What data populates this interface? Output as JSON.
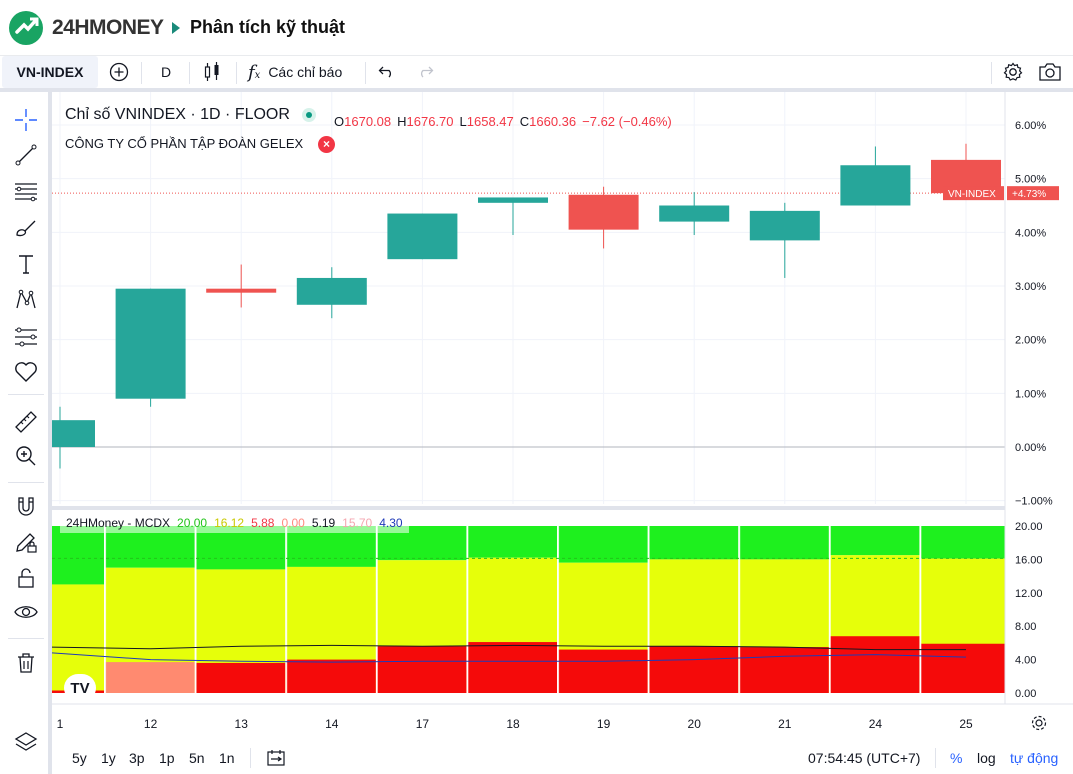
{
  "header": {
    "logo_text": "24HMONEY",
    "page_title": "Phân tích kỹ thuật"
  },
  "toolbar": {
    "symbol": "VN-INDEX",
    "interval": "D",
    "indicators_label": "Các chỉ báo"
  },
  "legend": {
    "title": "Chỉ số VNINDEX · 1D · FLOOR",
    "o_label": "O",
    "o_value": "1670.08",
    "h_label": "H",
    "h_value": "1676.70",
    "l_label": "L",
    "l_value": "1658.47",
    "c_label": "C",
    "c_value": "1660.36",
    "change": "−7.62 (−0.46%)",
    "compare_label": "CÔNG TY CỔ PHẦN TẬP ĐOÀN GELEX",
    "compare_close": "×"
  },
  "indicator": {
    "name": "24HMoney - MCDX",
    "values": [
      {
        "text": "20.00",
        "color": "#22c41a"
      },
      {
        "text": "16.12",
        "color": "#c9c900"
      },
      {
        "text": "5.88",
        "color": "#f23645"
      },
      {
        "text": "0.00",
        "color": "#ff8a80"
      },
      {
        "text": "5.19",
        "color": "#131722"
      },
      {
        "text": "15.70",
        "color": "#f4a6b0"
      },
      {
        "text": "4.30",
        "color": "#1f3ab8"
      }
    ]
  },
  "bottombar": {
    "ranges": [
      "5y",
      "1y",
      "3p",
      "1p",
      "5n",
      "1n"
    ],
    "time": "07:54:45 (UTC+7)",
    "percent": "%",
    "log": "log",
    "auto": "tự động"
  },
  "colors": {
    "up": "#26a69a",
    "down": "#ef5350",
    "mcdx_green": "#1ef01e",
    "mcdx_yellow": "#e6ff0a",
    "mcdx_red": "#f50a0a",
    "mcdx_salmon": "#ff8a70",
    "accent": "#2962ff"
  },
  "icons": {
    "left_toolbar": [
      "crosshair-icon",
      "trendline-icon",
      "fib-icon",
      "brush-icon",
      "text-icon",
      "pattern-icon",
      "prediction-icon",
      "heart-icon",
      "ruler-icon",
      "zoom-icon",
      "magnet-icon",
      "pencil-lock-icon",
      "lock-icon",
      "eye-icon",
      "trash-icon",
      "layers-icon"
    ]
  },
  "chart_data": {
    "type": "candlestick",
    "x": [
      "1",
      "12",
      "13",
      "14",
      "17",
      "18",
      "19",
      "20",
      "21",
      "24",
      "25"
    ],
    "candles": [
      {
        "x": "1",
        "open": 0.0,
        "high": 0.75,
        "low": -0.4,
        "close": 0.5
      },
      {
        "x": "12",
        "open": 0.9,
        "high": 2.95,
        "low": 0.75,
        "close": 2.95
      },
      {
        "x": "13",
        "open": 2.95,
        "high": 3.4,
        "low": 2.6,
        "close": 2.9
      },
      {
        "x": "14",
        "open": 2.65,
        "high": 3.35,
        "low": 2.4,
        "close": 3.15
      },
      {
        "x": "17",
        "open": 3.5,
        "high": 4.35,
        "low": 3.5,
        "close": 4.35
      },
      {
        "x": "18",
        "open": 4.55,
        "high": 4.65,
        "low": 3.95,
        "close": 4.65
      },
      {
        "x": "19",
        "open": 4.7,
        "high": 4.85,
        "low": 3.7,
        "close": 4.05
      },
      {
        "x": "20",
        "open": 4.2,
        "high": 4.75,
        "low": 3.95,
        "close": 4.5
      },
      {
        "x": "21",
        "open": 3.85,
        "high": 4.55,
        "low": 3.15,
        "close": 4.4
      },
      {
        "x": "24",
        "open": 4.5,
        "high": 5.6,
        "low": 4.5,
        "close": 5.25
      },
      {
        "x": "25",
        "open": 5.35,
        "high": 5.65,
        "low": 4.75,
        "close": 4.73
      }
    ],
    "last_value_label": "+4.73%",
    "series_label": "VN-INDEX",
    "y_axis": {
      "ticks": [
        "6.00%",
        "5.00%",
        "4.00%",
        "3.00%",
        "2.00%",
        "1.00%",
        "0.00%",
        "−1.00%"
      ],
      "tick_values": [
        6,
        5,
        4,
        3,
        2,
        1,
        0,
        -1
      ],
      "range": [
        -1,
        6.3
      ]
    },
    "indicator_axis": {
      "ticks": [
        "20.00",
        "16.00",
        "12.00",
        "8.00",
        "4.00",
        "0.00"
      ],
      "tick_values": [
        20,
        16,
        12,
        8,
        4,
        0
      ],
      "range": [
        0,
        20.5
      ]
    },
    "indicator_bars": [
      {
        "x": "1",
        "red": 0.3,
        "salmon": 0.0,
        "yellow_top": 13.0
      },
      {
        "x": "12",
        "red": 0.0,
        "salmon": 3.7,
        "yellow_top": 15.0
      },
      {
        "x": "13",
        "red": 3.6,
        "salmon": 0.0,
        "yellow_top": 14.8
      },
      {
        "x": "14",
        "red": 4.0,
        "salmon": 0.0,
        "yellow_top": 15.1
      },
      {
        "x": "17",
        "red": 5.6,
        "salmon": 0.0,
        "yellow_top": 15.9
      },
      {
        "x": "18",
        "red": 6.1,
        "salmon": 0.0,
        "yellow_top": 16.2
      },
      {
        "x": "19",
        "red": 5.2,
        "salmon": 0.0,
        "yellow_top": 15.6
      },
      {
        "x": "20",
        "red": 5.6,
        "salmon": 0.0,
        "yellow_top": 16.0
      },
      {
        "x": "21",
        "red": 5.5,
        "salmon": 0.0,
        "yellow_top": 16.0
      },
      {
        "x": "24",
        "red": 6.8,
        "salmon": 0.0,
        "yellow_top": 16.5
      },
      {
        "x": "25",
        "red": 5.9,
        "salmon": 0.0,
        "yellow_top": 16.1
      }
    ],
    "indicator_lines": [
      {
        "color": "#131722",
        "values": [
          5.5,
          5.3,
          5.6,
          5.7,
          5.6,
          5.7,
          5.6,
          5.6,
          5.5,
          5.2,
          5.2
        ]
      },
      {
        "color": "#1f3ab8",
        "values": [
          4.8,
          4.0,
          3.8,
          3.7,
          3.8,
          3.8,
          3.8,
          4.0,
          4.4,
          4.6,
          4.3
        ]
      }
    ]
  }
}
